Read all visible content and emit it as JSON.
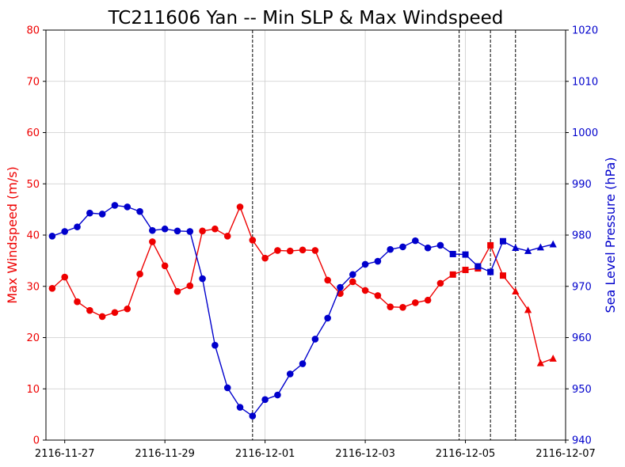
{
  "chart_data": {
    "type": "line",
    "title": "TC211606 Yan -- Min SLP & Max Windspeed",
    "ylabel_left": "Max Windspeed (m/s)",
    "ylabel_right": "Sea Level Pressure (hPa)",
    "xlim": [
      "2116-11-26 15:00",
      "2116-12-07 00:00"
    ],
    "ylim_left": [
      0,
      80
    ],
    "ylim_right": [
      940,
      1020
    ],
    "grid": true,
    "x_ticks": [
      "2116-11-27",
      "2116-11-29",
      "2116-12-01",
      "2116-12-03",
      "2116-12-05",
      "2116-12-07"
    ],
    "y_ticks_left": [
      0,
      10,
      20,
      30,
      40,
      50,
      60,
      70,
      80
    ],
    "y_ticks_right": [
      940,
      950,
      960,
      970,
      980,
      990,
      1000,
      1010,
      1020
    ],
    "vlines": [
      "2116-11-30 18:00",
      "2116-12-04 21:00",
      "2116-12-05 12:00",
      "2116-12-06 00:00"
    ],
    "colors": {
      "wind": "#ee0000",
      "slp": "#0000cc"
    },
    "series": [
      {
        "name": "Max Windspeed",
        "axis": "left",
        "color": "#ee0000",
        "points": [
          {
            "t": "2116-11-26 18:00",
            "v": 29.6,
            "m": "circle"
          },
          {
            "t": "2116-11-27 00:00",
            "v": 31.8,
            "m": "circle"
          },
          {
            "t": "2116-11-27 06:00",
            "v": 27.0,
            "m": "circle"
          },
          {
            "t": "2116-11-27 12:00",
            "v": 25.3,
            "m": "circle"
          },
          {
            "t": "2116-11-27 18:00",
            "v": 24.1,
            "m": "circle"
          },
          {
            "t": "2116-11-28 00:00",
            "v": 24.9,
            "m": "circle"
          },
          {
            "t": "2116-11-28 06:00",
            "v": 25.6,
            "m": "circle"
          },
          {
            "t": "2116-11-28 12:00",
            "v": 32.4,
            "m": "circle"
          },
          {
            "t": "2116-11-28 18:00",
            "v": 38.7,
            "m": "circle"
          },
          {
            "t": "2116-11-29 00:00",
            "v": 34.0,
            "m": "circle"
          },
          {
            "t": "2116-11-29 06:00",
            "v": 29.0,
            "m": "circle"
          },
          {
            "t": "2116-11-29 12:00",
            "v": 30.1,
            "m": "circle"
          },
          {
            "t": "2116-11-29 18:00",
            "v": 40.8,
            "m": "circle"
          },
          {
            "t": "2116-11-30 00:00",
            "v": 41.2,
            "m": "circle"
          },
          {
            "t": "2116-11-30 06:00",
            "v": 39.8,
            "m": "circle"
          },
          {
            "t": "2116-11-30 12:00",
            "v": 45.5,
            "m": "circle"
          },
          {
            "t": "2116-11-30 18:00",
            "v": 39.0,
            "m": "circle"
          },
          {
            "t": "2116-12-01 00:00",
            "v": 35.5,
            "m": "circle"
          },
          {
            "t": "2116-12-01 06:00",
            "v": 37.0,
            "m": "circle"
          },
          {
            "t": "2116-12-01 12:00",
            "v": 36.9,
            "m": "circle"
          },
          {
            "t": "2116-12-01 18:00",
            "v": 37.1,
            "m": "circle"
          },
          {
            "t": "2116-12-02 00:00",
            "v": 37.0,
            "m": "circle"
          },
          {
            "t": "2116-12-02 06:00",
            "v": 31.2,
            "m": "circle"
          },
          {
            "t": "2116-12-02 12:00",
            "v": 28.6,
            "m": "circle"
          },
          {
            "t": "2116-12-02 18:00",
            "v": 30.9,
            "m": "circle"
          },
          {
            "t": "2116-12-03 00:00",
            "v": 29.2,
            "m": "circle"
          },
          {
            "t": "2116-12-03 06:00",
            "v": 28.2,
            "m": "circle"
          },
          {
            "t": "2116-12-03 12:00",
            "v": 26.0,
            "m": "circle"
          },
          {
            "t": "2116-12-03 18:00",
            "v": 25.9,
            "m": "circle"
          },
          {
            "t": "2116-12-04 00:00",
            "v": 26.8,
            "m": "circle"
          },
          {
            "t": "2116-12-04 06:00",
            "v": 27.3,
            "m": "circle"
          },
          {
            "t": "2116-12-04 12:00",
            "v": 30.6,
            "m": "circle"
          },
          {
            "t": "2116-12-04 18:00",
            "v": 32.3,
            "m": "square"
          },
          {
            "t": "2116-12-05 00:00",
            "v": 33.2,
            "m": "square"
          },
          {
            "t": "2116-12-05 06:00",
            "v": 33.5,
            "m": "square"
          },
          {
            "t": "2116-12-05 12:00",
            "v": 38.0,
            "m": "square"
          },
          {
            "t": "2116-12-05 18:00",
            "v": 32.1,
            "m": "square"
          },
          {
            "t": "2116-12-06 00:00",
            "v": 29.0,
            "m": "triangle"
          },
          {
            "t": "2116-12-06 06:00",
            "v": 25.4,
            "m": "triangle"
          },
          {
            "t": "2116-12-06 12:00",
            "v": 15.0,
            "m": "triangle"
          },
          {
            "t": "2116-12-06 18:00",
            "v": 15.9,
            "m": "triangle"
          }
        ]
      },
      {
        "name": "Min SLP",
        "axis": "right",
        "color": "#0000cc",
        "points": [
          {
            "t": "2116-11-26 18:00",
            "v": 979.8,
            "m": "circle"
          },
          {
            "t": "2116-11-27 00:00",
            "v": 980.7,
            "m": "circle"
          },
          {
            "t": "2116-11-27 06:00",
            "v": 981.6,
            "m": "circle"
          },
          {
            "t": "2116-11-27 12:00",
            "v": 984.3,
            "m": "circle"
          },
          {
            "t": "2116-11-27 18:00",
            "v": 984.1,
            "m": "circle"
          },
          {
            "t": "2116-11-28 00:00",
            "v": 985.8,
            "m": "circle"
          },
          {
            "t": "2116-11-28 06:00",
            "v": 985.5,
            "m": "circle"
          },
          {
            "t": "2116-11-28 12:00",
            "v": 984.6,
            "m": "circle"
          },
          {
            "t": "2116-11-28 18:00",
            "v": 980.9,
            "m": "circle"
          },
          {
            "t": "2116-11-29 00:00",
            "v": 981.2,
            "m": "circle"
          },
          {
            "t": "2116-11-29 06:00",
            "v": 980.8,
            "m": "circle"
          },
          {
            "t": "2116-11-29 12:00",
            "v": 980.7,
            "m": "circle"
          },
          {
            "t": "2116-11-29 18:00",
            "v": 971.5,
            "m": "circle"
          },
          {
            "t": "2116-11-30 00:00",
            "v": 958.5,
            "m": "circle"
          },
          {
            "t": "2116-11-30 06:00",
            "v": 950.2,
            "m": "circle"
          },
          {
            "t": "2116-11-30 12:00",
            "v": 946.4,
            "m": "circle"
          },
          {
            "t": "2116-11-30 18:00",
            "v": 944.7,
            "m": "circle"
          },
          {
            "t": "2116-12-01 00:00",
            "v": 947.9,
            "m": "circle"
          },
          {
            "t": "2116-12-01 06:00",
            "v": 948.8,
            "m": "circle"
          },
          {
            "t": "2116-12-01 12:00",
            "v": 952.9,
            "m": "circle"
          },
          {
            "t": "2116-12-01 18:00",
            "v": 954.9,
            "m": "circle"
          },
          {
            "t": "2116-12-02 00:00",
            "v": 959.7,
            "m": "circle"
          },
          {
            "t": "2116-12-02 06:00",
            "v": 963.8,
            "m": "circle"
          },
          {
            "t": "2116-12-02 12:00",
            "v": 969.8,
            "m": "circle"
          },
          {
            "t": "2116-12-02 18:00",
            "v": 972.3,
            "m": "circle"
          },
          {
            "t": "2116-12-03 00:00",
            "v": 974.3,
            "m": "circle"
          },
          {
            "t": "2116-12-03 06:00",
            "v": 974.9,
            "m": "circle"
          },
          {
            "t": "2116-12-03 12:00",
            "v": 977.2,
            "m": "circle"
          },
          {
            "t": "2116-12-03 18:00",
            "v": 977.7,
            "m": "circle"
          },
          {
            "t": "2116-12-04 00:00",
            "v": 978.9,
            "m": "circle"
          },
          {
            "t": "2116-12-04 06:00",
            "v": 977.5,
            "m": "circle"
          },
          {
            "t": "2116-12-04 12:00",
            "v": 978.0,
            "m": "circle"
          },
          {
            "t": "2116-12-04 18:00",
            "v": 976.3,
            "m": "square"
          },
          {
            "t": "2116-12-05 00:00",
            "v": 976.2,
            "m": "square"
          },
          {
            "t": "2116-12-05 06:00",
            "v": 973.9,
            "m": "square"
          },
          {
            "t": "2116-12-05 12:00",
            "v": 972.8,
            "m": "square"
          },
          {
            "t": "2116-12-05 18:00",
            "v": 978.8,
            "m": "square"
          },
          {
            "t": "2116-12-06 00:00",
            "v": 977.5,
            "m": "triangle"
          },
          {
            "t": "2116-12-06 06:00",
            "v": 976.9,
            "m": "triangle"
          },
          {
            "t": "2116-12-06 12:00",
            "v": 977.6,
            "m": "triangle"
          },
          {
            "t": "2116-12-06 18:00",
            "v": 978.2,
            "m": "triangle"
          }
        ]
      }
    ]
  }
}
